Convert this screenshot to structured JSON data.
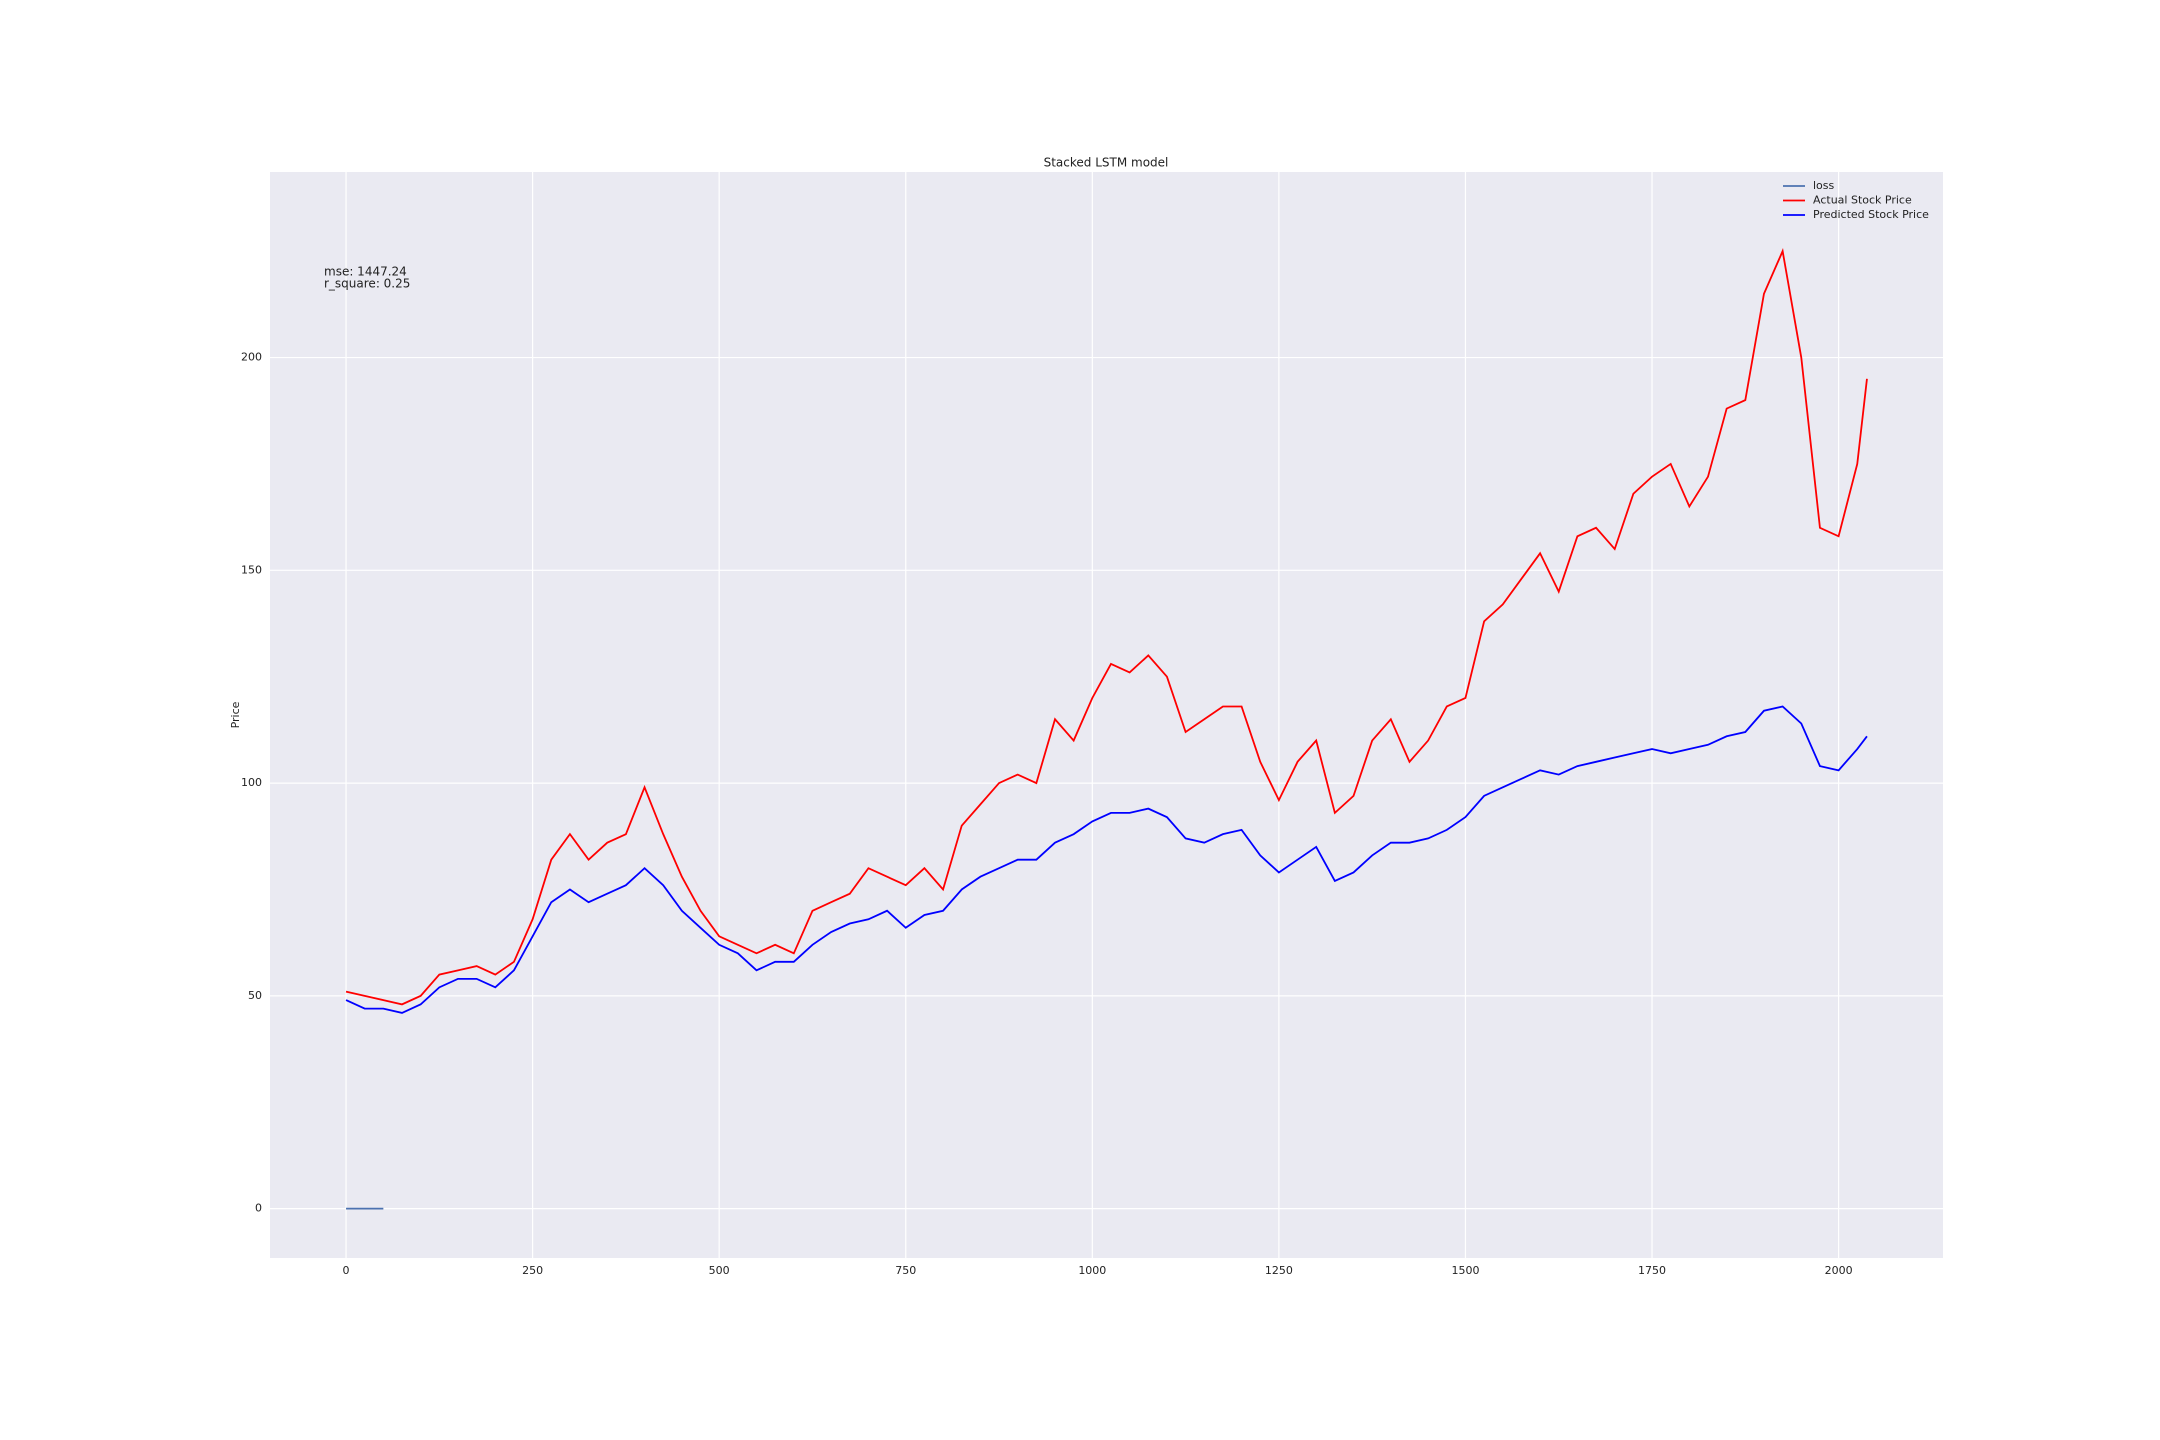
{
  "chart_data": {
    "type": "line",
    "title": "Stacked LSTM model",
    "ylabel": "Price",
    "annotations": [
      "mse: 1447.24",
      "r_square: 0.25"
    ],
    "xlim": [
      -101.9,
      2139.9
    ],
    "ylim": [
      -11.6,
      243.6
    ],
    "xticks": [
      0,
      250,
      500,
      750,
      1000,
      1250,
      1500,
      1750,
      2000
    ],
    "yticks": [
      0,
      50,
      100,
      150,
      200
    ],
    "grid": true,
    "legend": "upper right",
    "series": [
      {
        "name": "loss",
        "color": "#4c72b0",
        "x": [
          0,
          50
        ],
        "values": [
          0,
          0
        ]
      },
      {
        "name": "Actual Stock Price",
        "color": "#ff0000",
        "x": [
          0,
          25,
          50,
          75,
          100,
          125,
          150,
          175,
          200,
          225,
          250,
          275,
          300,
          325,
          350,
          375,
          400,
          425,
          450,
          475,
          500,
          525,
          550,
          575,
          600,
          625,
          650,
          675,
          700,
          725,
          750,
          775,
          800,
          825,
          850,
          875,
          900,
          925,
          950,
          975,
          1000,
          1025,
          1050,
          1075,
          1100,
          1125,
          1150,
          1175,
          1200,
          1225,
          1250,
          1275,
          1300,
          1325,
          1350,
          1375,
          1400,
          1425,
          1450,
          1475,
          1500,
          1525,
          1550,
          1575,
          1600,
          1625,
          1650,
          1675,
          1700,
          1725,
          1750,
          1775,
          1800,
          1825,
          1850,
          1875,
          1900,
          1925,
          1950,
          1975,
          2000,
          2025,
          2038
        ],
        "values": [
          51,
          50,
          49,
          48,
          50,
          55,
          56,
          57,
          55,
          58,
          68,
          82,
          88,
          82,
          86,
          88,
          99,
          88,
          78,
          70,
          64,
          62,
          60,
          62,
          60,
          70,
          72,
          74,
          80,
          78,
          76,
          80,
          75,
          90,
          95,
          100,
          102,
          100,
          115,
          110,
          120,
          128,
          126,
          130,
          125,
          112,
          115,
          118,
          118,
          105,
          96,
          105,
          110,
          93,
          97,
          110,
          115,
          105,
          110,
          118,
          120,
          138,
          142,
          148,
          154,
          145,
          158,
          160,
          155,
          168,
          172,
          175,
          165,
          172,
          188,
          190,
          215,
          225,
          200,
          160,
          158,
          175,
          195
        ]
      },
      {
        "name": "Predicted Stock Price",
        "color": "#0000ff",
        "x": [
          0,
          25,
          50,
          75,
          100,
          125,
          150,
          175,
          200,
          225,
          250,
          275,
          300,
          325,
          350,
          375,
          400,
          425,
          450,
          475,
          500,
          525,
          550,
          575,
          600,
          625,
          650,
          675,
          700,
          725,
          750,
          775,
          800,
          825,
          850,
          875,
          900,
          925,
          950,
          975,
          1000,
          1025,
          1050,
          1075,
          1100,
          1125,
          1150,
          1175,
          1200,
          1225,
          1250,
          1275,
          1300,
          1325,
          1350,
          1375,
          1400,
          1425,
          1450,
          1475,
          1500,
          1525,
          1550,
          1575,
          1600,
          1625,
          1650,
          1675,
          1700,
          1725,
          1750,
          1775,
          1800,
          1825,
          1850,
          1875,
          1900,
          1925,
          1950,
          1975,
          2000,
          2025,
          2038
        ],
        "values": [
          49,
          47,
          47,
          46,
          48,
          52,
          54,
          54,
          52,
          56,
          64,
          72,
          75,
          72,
          74,
          76,
          80,
          76,
          70,
          66,
          62,
          60,
          56,
          58,
          58,
          62,
          65,
          67,
          68,
          70,
          66,
          69,
          70,
          75,
          78,
          80,
          82,
          82,
          86,
          88,
          91,
          93,
          93,
          94,
          92,
          87,
          86,
          88,
          89,
          83,
          79,
          82,
          85,
          77,
          79,
          83,
          86,
          86,
          87,
          89,
          92,
          97,
          99,
          101,
          103,
          102,
          104,
          105,
          106,
          107,
          108,
          107,
          108,
          109,
          111,
          112,
          117,
          118,
          114,
          104,
          103,
          108,
          111
        ]
      }
    ]
  }
}
